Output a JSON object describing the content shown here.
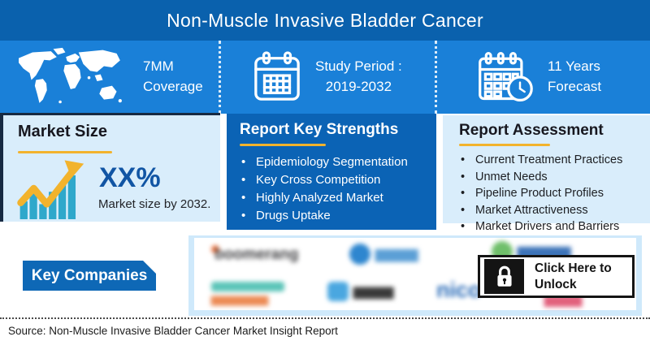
{
  "colors": {
    "header-bg": "#0a61ad",
    "stats-bg": "#1a80d8",
    "panel-light-bg": "#d9edfb",
    "panel-dark-bg": "#0b63b5",
    "accent-yellow": "#f2b32d",
    "navy-line": "#172a42",
    "teal-bar": "#2fa8cb",
    "percent-blue": "#1155a4",
    "button-blue": "#0e68b6",
    "text-dark": "#17171f",
    "logo-panel-border": "#cfe9fb"
  },
  "header": {
    "title": "Non-Muscle Invasive Bladder Cancer"
  },
  "stats": {
    "coverage": {
      "icon": "world-map-icon",
      "line1": "7MM",
      "line2": "Coverage"
    },
    "study_period": {
      "icon": "calendar-icon",
      "line1": "Study Period :",
      "line2": "2019-2032"
    },
    "forecast": {
      "icon": "calendar-clock-icon",
      "line1": "11 Years",
      "line2": "Forecast"
    }
  },
  "market_size": {
    "title": "Market Size",
    "percent": "XX%",
    "caption": "Market size by 2032."
  },
  "key_strengths": {
    "title": "Report Key Strengths",
    "items": [
      "Epidemiology Segmentation",
      "Key Cross Competition",
      "Highly Analyzed Market",
      "Drugs Uptake"
    ]
  },
  "assessment": {
    "title": "Report Assessment",
    "items": [
      "Current Treatment Practices",
      "Unmet Needs",
      "Pipeline Product Profiles",
      "Market Attractiveness",
      "Market Drivers and Barriers"
    ]
  },
  "companies": {
    "label": "Key Companies",
    "logos": [
      {
        "name": "logo-blurred-1",
        "mark": "dot",
        "mark_color": "#f0713a",
        "text": "boomerang",
        "text_color": "#3f3f42"
      },
      {
        "name": "logo-blurred-2",
        "mark": "circle",
        "mark_color": "#2e86cf",
        "text": "▆▆▆▆",
        "text_color": "#5b9fd6"
      },
      {
        "name": "logo-blurred-3",
        "mark": "circle",
        "mark_color": "#6fbf6a",
        "text": "▆▆▆▆▆",
        "text_color": "#3c73b8"
      },
      {
        "name": "logo-blurred-4",
        "mark": "bar",
        "mark_color": "#5bc4b8",
        "text": "▆▆▆▆▆▆▆",
        "text_color": "#ec8a54"
      },
      {
        "name": "logo-blurred-5",
        "mark": "square",
        "mark_color": "#4aa7e0",
        "text": "▆▆▆▆",
        "text_color": "#3a3a3a"
      },
      {
        "name": "logo-blurred-6",
        "mark": "none",
        "mark_color": "",
        "text": "nico",
        "text_color": "#2b6cb8"
      },
      {
        "name": "logo-blurred-7",
        "mark": "none",
        "mark_color": "",
        "text": "▆▆▆▆",
        "text_color": "#e2607c"
      }
    ],
    "unlock": {
      "icon": "lock-icon",
      "line1": "Click Here to",
      "line2": "Unlock"
    }
  },
  "footer": {
    "source": "Source: Non-Muscle Invasive Bladder Cancer Market Insight Report"
  }
}
